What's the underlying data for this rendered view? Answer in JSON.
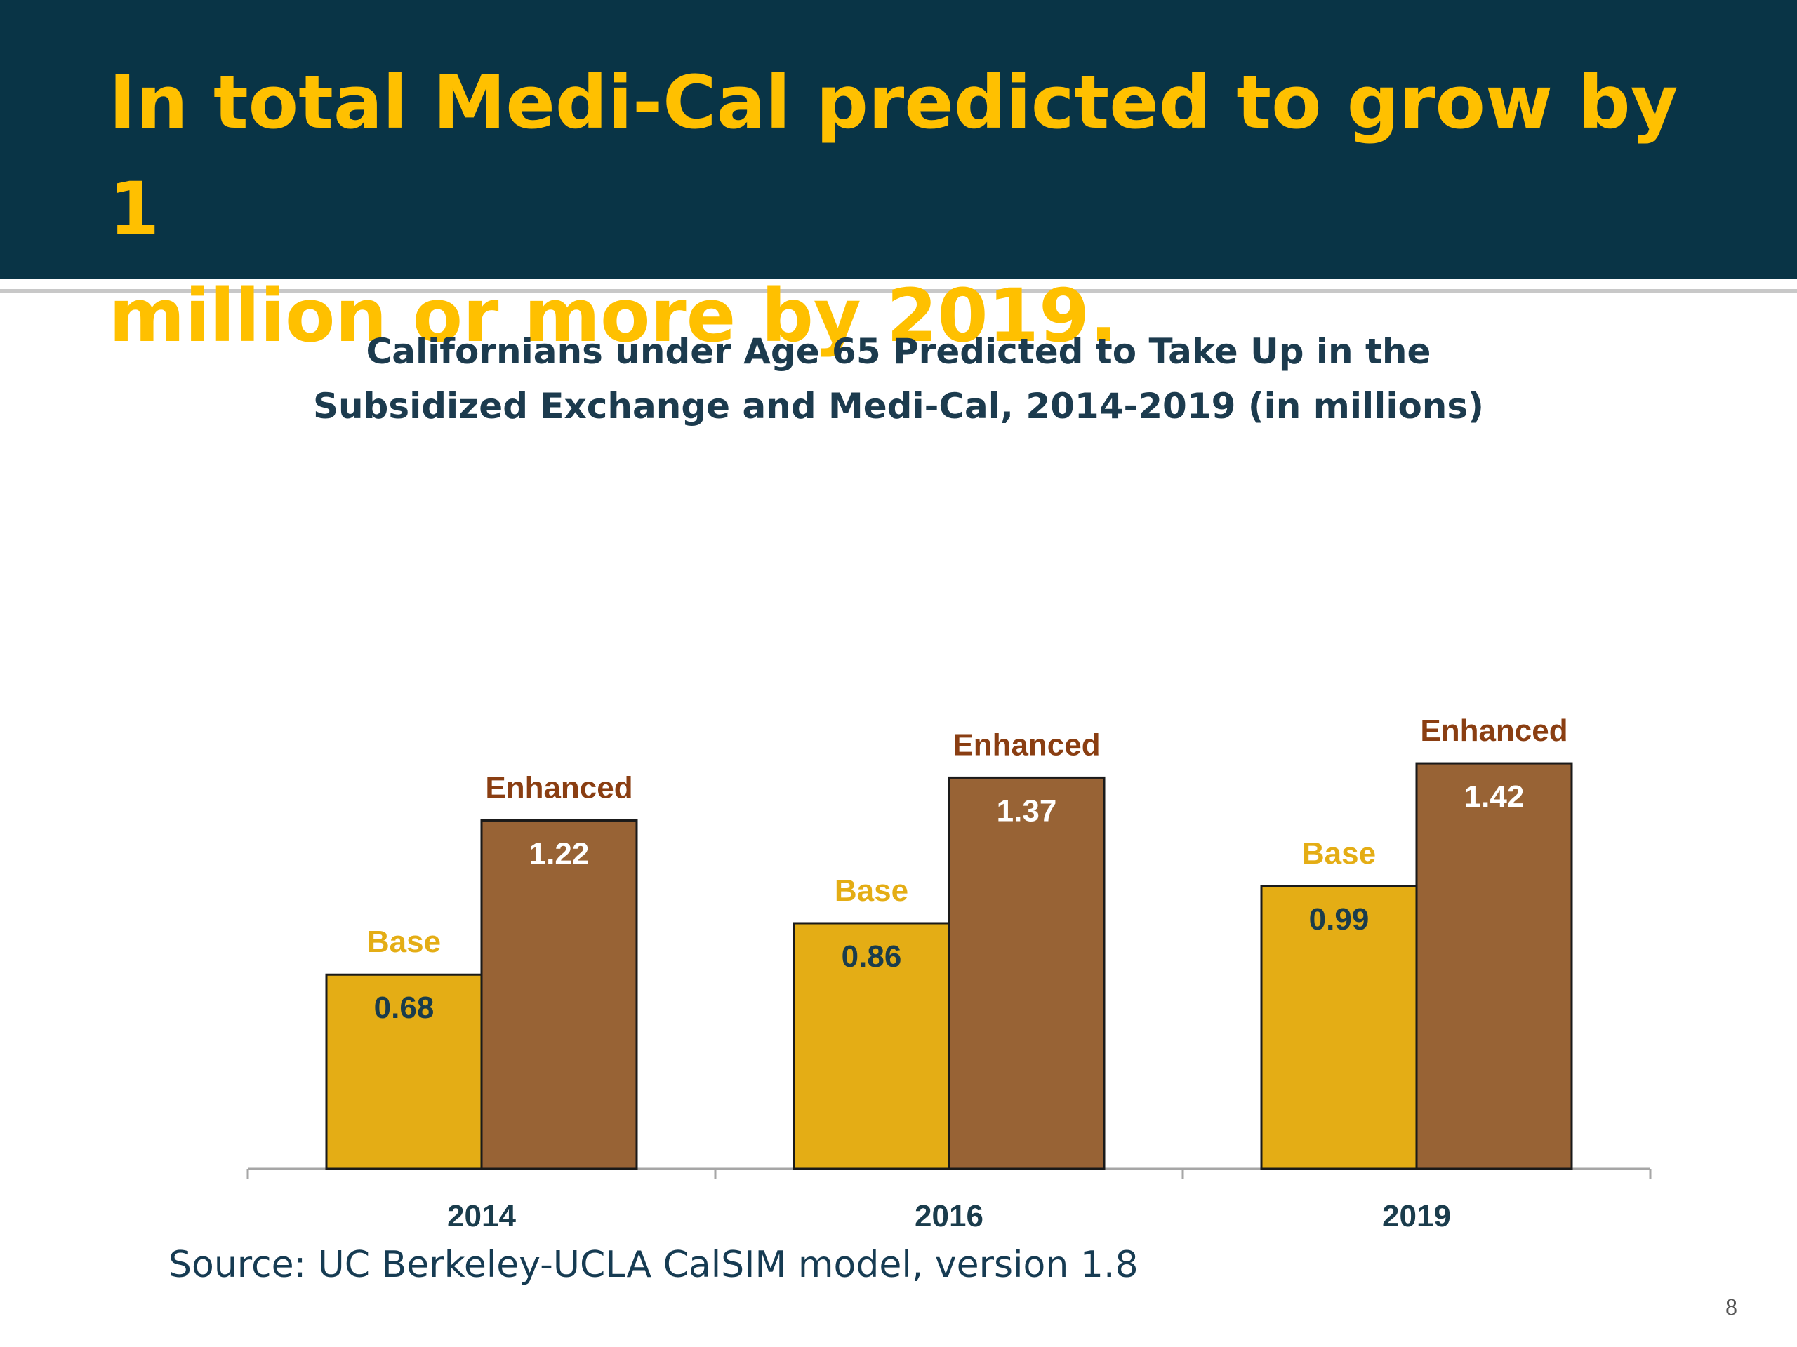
{
  "slide": {
    "title_lines": [
      "In total Medi-Cal predicted to grow by 1",
      "million or more by 2019."
    ],
    "source": "Source: UC Berkeley-UCLA CalSIM model, version 1.8",
    "page_number": "8",
    "colors": {
      "header": "#093446",
      "title": "#ffc000"
    }
  },
  "chart_data": {
    "type": "bar",
    "title_lines": [
      "Californians under Age 65 Predicted to Take Up in the",
      "Subsidized Exchange and Medi-Cal, 2014-2019 (in millions)"
    ],
    "categories": [
      "2014",
      "2016",
      "2019"
    ],
    "series": [
      {
        "name": "Base",
        "values": [
          0.68,
          0.86,
          0.99
        ],
        "color": "#e4ad15",
        "label_color": "#e4ad15",
        "value_color": "#1a3c4c"
      },
      {
        "name": "Enhanced",
        "values": [
          1.22,
          1.37,
          1.42
        ],
        "color": "#986335",
        "label_color": "#8a3e12",
        "value_color": "#ffffff"
      }
    ],
    "ylim": [
      0,
      1.6
    ],
    "xlabel": "",
    "ylabel": "",
    "grid": false,
    "legend": "none"
  }
}
